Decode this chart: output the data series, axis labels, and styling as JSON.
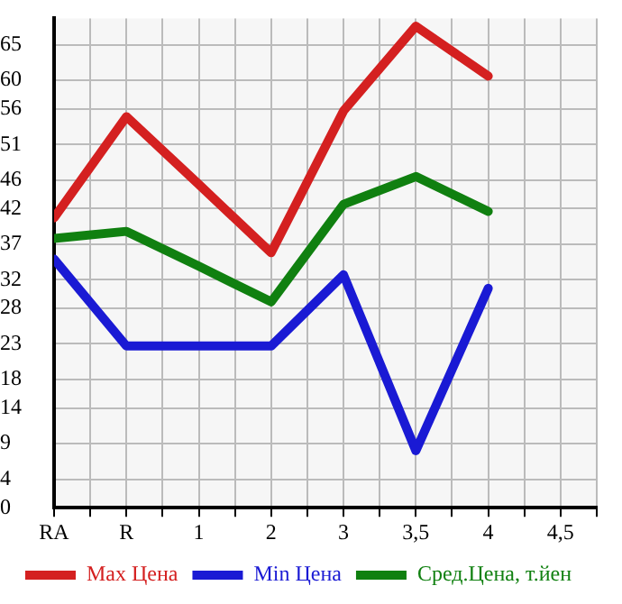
{
  "chart_data": {
    "type": "line",
    "categories": [
      "RA",
      "R",
      "1",
      "2",
      "3",
      "3,5",
      "4",
      "4,5"
    ],
    "series": [
      {
        "name": "Max Цена",
        "color": "#d42020",
        "values": [
          40.7,
          54.9,
          45.4,
          35.8,
          55.7,
          67.6,
          60.6,
          null
        ]
      },
      {
        "name": "Min Цена",
        "color": "#1a1ad4",
        "values": [
          34.9,
          22.7,
          22.7,
          22.7,
          32.7,
          8.0,
          30.8,
          null
        ]
      },
      {
        "name": "Сред.Цена, т.йен",
        "color": "#108010",
        "values": [
          37.8,
          38.8,
          33.9,
          28.9,
          42.6,
          46.5,
          41.6,
          null
        ]
      }
    ],
    "ylim": [
      0,
      68.7
    ],
    "yticks": [
      0,
      4,
      9,
      14,
      18,
      23,
      28,
      32,
      37,
      42,
      46,
      51,
      56,
      60,
      65
    ],
    "grid": true,
    "legend": "bottom",
    "marker": "none",
    "line_style": "solid"
  }
}
